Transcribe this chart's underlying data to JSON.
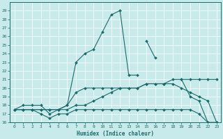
{
  "xlabel": "Humidex (Indice chaleur)",
  "bg_color": "#c8eaea",
  "line_color": "#1a6b6b",
  "grid_color": "#ffffff",
  "xlim": [
    -0.5,
    23.5
  ],
  "ylim": [
    16,
    30
  ],
  "xticks": [
    0,
    1,
    2,
    3,
    4,
    5,
    6,
    7,
    8,
    9,
    10,
    11,
    12,
    13,
    14,
    15,
    16,
    17,
    18,
    19,
    20,
    21,
    22,
    23
  ],
  "yticks": [
    16,
    17,
    18,
    19,
    20,
    21,
    22,
    23,
    24,
    25,
    26,
    27,
    28,
    29
  ],
  "lines": [
    {
      "x": [
        0,
        1,
        2,
        3,
        4,
        5,
        6,
        7,
        8,
        9,
        10,
        11,
        12,
        13,
        14,
        15,
        16,
        17,
        18,
        19,
        20,
        21,
        22,
        23
      ],
      "y": [
        17.5,
        18,
        18,
        18,
        17,
        17.5,
        18,
        23,
        24,
        24.5,
        26.5,
        28.5,
        29,
        21.5,
        21.5,
        null,
        null,
        null,
        null,
        null,
        null,
        null,
        null,
        null
      ]
    },
    {
      "x": [
        0,
        1,
        2,
        3,
        4,
        5,
        6,
        7,
        8,
        9,
        10,
        11,
        12,
        13,
        14,
        15,
        16,
        17,
        18,
        19,
        20,
        21,
        22,
        23
      ],
      "y": [
        null,
        null,
        null,
        null,
        null,
        null,
        null,
        null,
        null,
        null,
        null,
        null,
        null,
        null,
        null,
        25.5,
        23.5,
        null,
        null,
        21,
        19,
        18.5,
        16,
        16
      ]
    },
    {
      "x": [
        0,
        1,
        2,
        3,
        4,
        5,
        6,
        7,
        8,
        9,
        10,
        11,
        12,
        13,
        14,
        15,
        16,
        17,
        18,
        19,
        20,
        21,
        22,
        23
      ],
      "y": [
        17.5,
        17.5,
        17.5,
        17.5,
        17.5,
        17.5,
        17.5,
        18,
        18,
        18.5,
        19,
        19.5,
        20,
        20,
        20,
        20.5,
        20.5,
        20.5,
        21,
        21,
        21,
        21,
        21,
        21
      ]
    },
    {
      "x": [
        0,
        1,
        2,
        3,
        4,
        5,
        6,
        7,
        8,
        9,
        10,
        11,
        12,
        13,
        14,
        15,
        16,
        17,
        18,
        19,
        20,
        21,
        22,
        23
      ],
      "y": [
        17.5,
        17.5,
        17.5,
        17,
        16.5,
        17,
        17,
        17.5,
        17.5,
        17.5,
        17.5,
        17.5,
        17.5,
        17.5,
        17.5,
        17.5,
        17.5,
        17.5,
        17.5,
        17.5,
        17.5,
        17,
        16,
        16
      ]
    },
    {
      "x": [
        0,
        1,
        2,
        3,
        4,
        5,
        6,
        7,
        8,
        9,
        10,
        11,
        12,
        13,
        14,
        15,
        16,
        17,
        18,
        19,
        20,
        21,
        22,
        23
      ],
      "y": [
        17.5,
        17.5,
        17.5,
        17.5,
        17.5,
        17.5,
        18,
        19.5,
        20,
        20,
        20,
        20,
        20,
        20,
        20,
        20.5,
        20.5,
        20.5,
        20.5,
        20,
        19.5,
        19,
        18.5,
        16
      ]
    }
  ]
}
